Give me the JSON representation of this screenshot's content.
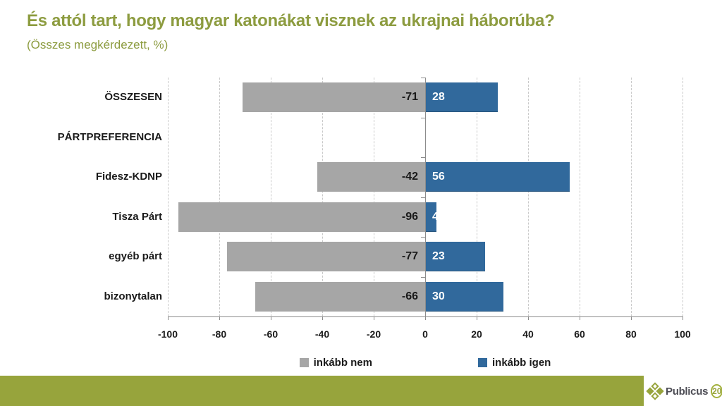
{
  "title": "És attól tart, hogy magyar katonákat visznek az ukrajnai háborúba?",
  "subtitle": "(Összes megkérdezett, %)",
  "chart_data": {
    "type": "bar",
    "orientation": "horizontal-diverging",
    "title": "És attól tart, hogy magyar katonákat visznek az ukrajnai háborúba?",
    "subtitle": "(Összes megkérdezett, %)",
    "categories": [
      "ÖSSZESEN",
      "PÁRTPREFERENCIA",
      "Fidesz-KDNP",
      "Tisza Párt",
      "egyéb párt",
      "bizonytalan"
    ],
    "series": [
      {
        "name": "inkább nem",
        "color": "#a6a6a6",
        "values": [
          -71,
          null,
          -42,
          -96,
          -77,
          -66
        ]
      },
      {
        "name": "inkább igen",
        "color": "#31699c",
        "values": [
          28,
          null,
          56,
          4,
          23,
          30
        ]
      }
    ],
    "xlim": [
      -100,
      100
    ],
    "xticks": [
      -100,
      -80,
      -60,
      -40,
      -20,
      0,
      20,
      40,
      60,
      80,
      100
    ],
    "grid": "dashed-vertical",
    "legend_position": "bottom"
  },
  "footer": {
    "logo_text": "Publicus",
    "logo_badge": "20"
  },
  "colors": {
    "title_green": "#8d9c40",
    "footer_green": "#97a43c",
    "bar_gray": "#a6a6a6",
    "bar_blue": "#31699c",
    "axis_gray": "#8c8c8c",
    "grid_gray": "#c9c9c9",
    "value_label_neg": "#1a1a1a",
    "value_label_pos": "#ffffff"
  }
}
